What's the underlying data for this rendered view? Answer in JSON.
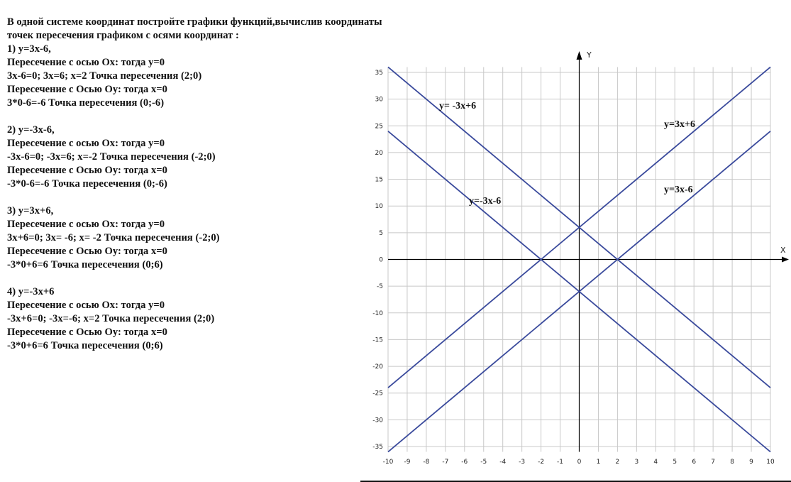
{
  "task_text": [
    "В одной системе координат постройте графики функций,вычислив координаты",
    "точек пересечения графиком с осями координат :",
    "1) у=3х-6,",
    "Пересечение с осью Ох: тогда у=0",
    "3х-6=0; 3х=6; х=2 Точка пересечения (2;0)",
    "Пересечение с Осью Оу: тогда х=0",
    "3*0-6=-6 Точка пересечения (0;-6)",
    "",
    "2) у=-3х-6,",
    "Пересечение с осью Ох: тогда у=0",
    "-3х-6=0; -3х=6; х=-2 Точка пересечения (-2;0)",
    "Пересечение с Осью Оу: тогда х=0",
    "-3*0-6=-6 Точка пересечения (0;-6)",
    "",
    "3) у=3х+6,",
    "Пересечение с осью Ох: тогда у=0",
    "3х+6=0; 3х= -6; х= -2 Точка пересечения (-2;0)",
    "Пересечение с Осью Оу: тогда х=0",
    "-3*0+6=6 Точка пересечения (0;6)",
    "",
    "4) у=-3х+6",
    "Пересечение с осью Ох: тогда у=0",
    "-3х+6=0; -3х=-6; х=2 Точка пересечения (2;0)",
    "Пересечение с Осью Оу: тогда х=0",
    "-3*0+6=6 Точка пересечения (0;6)"
  ],
  "chart_data": {
    "type": "line",
    "xlabel": "X",
    "ylabel": "Y",
    "xlim": [
      -10,
      10
    ],
    "ylim": [
      -36,
      36
    ],
    "x_ticks": [
      -10,
      -9,
      -8,
      -7,
      -6,
      -5,
      -4,
      -3,
      -2,
      -1,
      0,
      1,
      2,
      3,
      4,
      5,
      6,
      7,
      8,
      9,
      10
    ],
    "y_ticks": [
      35,
      30,
      25,
      20,
      15,
      10,
      5,
      0,
      -5,
      -10,
      -15,
      -20,
      -25,
      -30,
      -35
    ],
    "grid": true,
    "line_color": "#3a4a9c",
    "series": [
      {
        "name": "y= -3x+6",
        "slope": -3,
        "intercept": 6,
        "points": [
          [
            -10,
            36
          ],
          [
            10,
            -24
          ]
        ]
      },
      {
        "name": "y=-3x-6",
        "slope": -3,
        "intercept": -6,
        "points": [
          [
            -10,
            24
          ],
          [
            10,
            -36
          ]
        ]
      },
      {
        "name": "y=3x+6",
        "slope": 3,
        "intercept": 6,
        "points": [
          [
            -10,
            -24
          ],
          [
            10,
            36
          ]
        ]
      },
      {
        "name": "y=3x-6",
        "slope": 3,
        "intercept": -6,
        "points": [
          [
            -10,
            -36
          ],
          [
            10,
            24
          ]
        ]
      }
    ]
  }
}
